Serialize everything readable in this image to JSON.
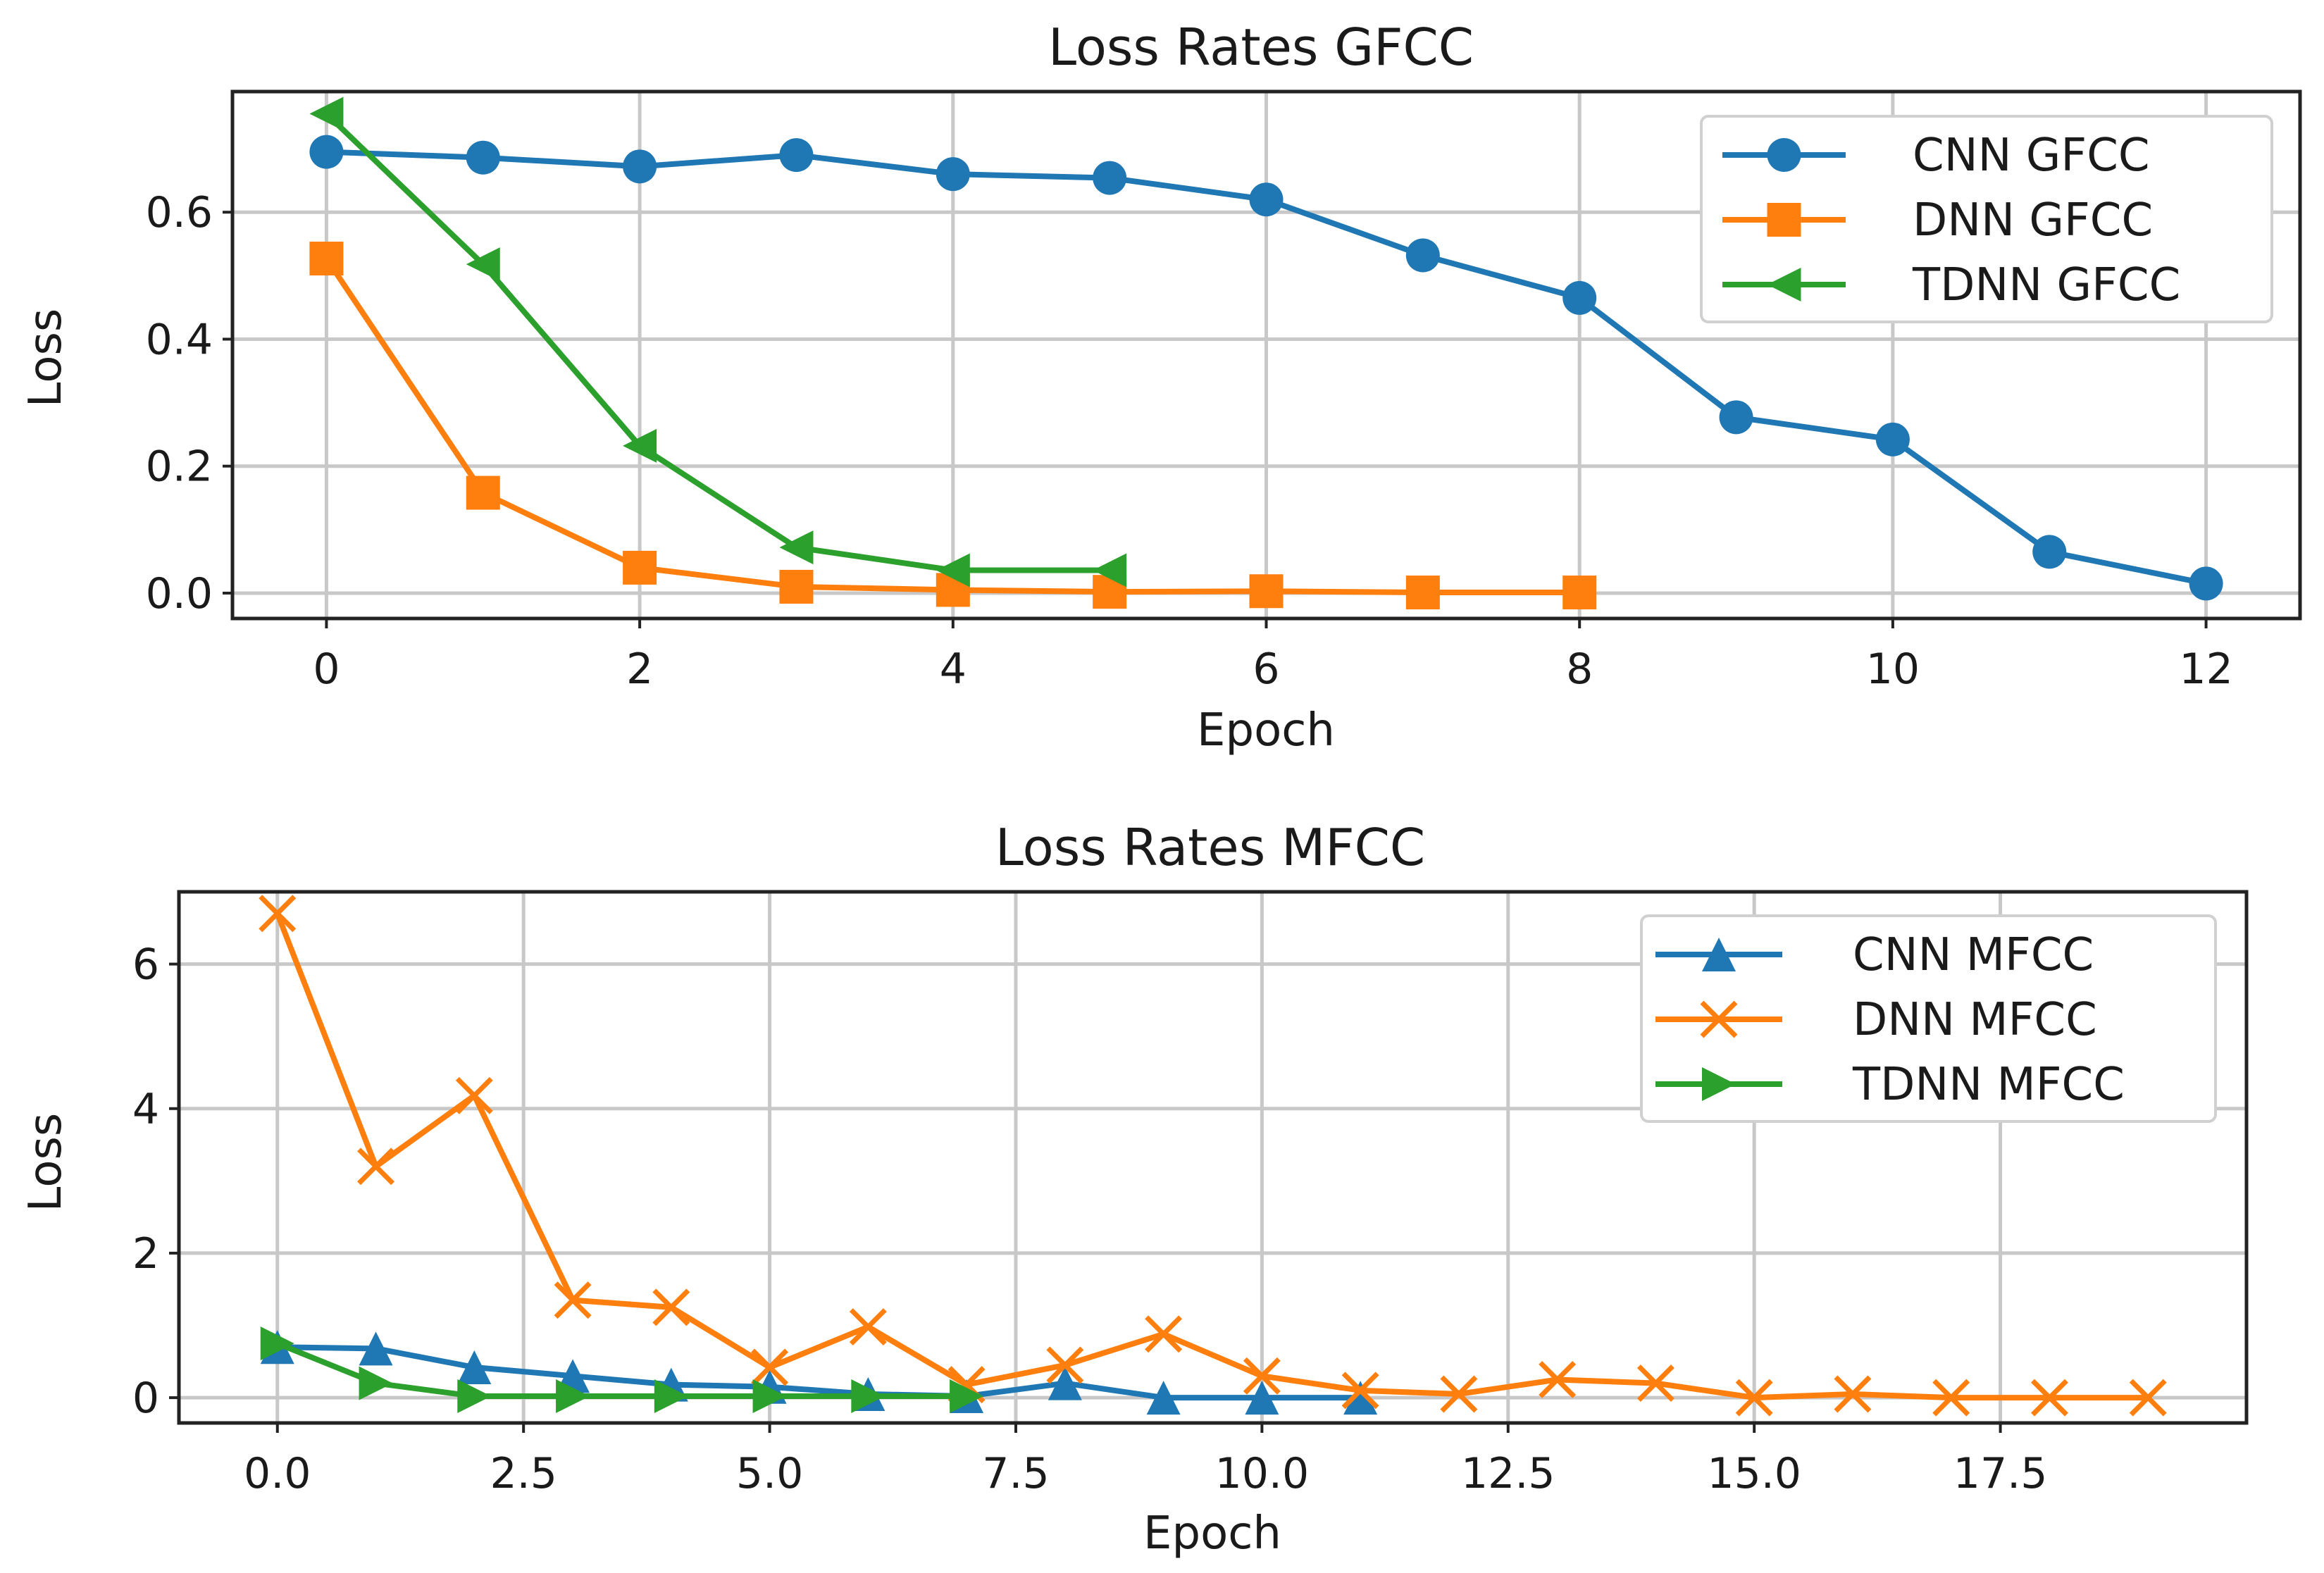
{
  "chart_data": [
    {
      "type": "line",
      "id": "gfcc",
      "title": "Loss Rates GFCC",
      "xlabel": "Epoch",
      "ylabel": "Loss",
      "xlim": [
        -0.6,
        12.6
      ],
      "ylim": [
        -0.04,
        0.79
      ],
      "xticks": [
        0,
        2,
        4,
        6,
        8,
        10,
        12
      ],
      "xtick_labels": [
        "0",
        "2",
        "4",
        "6",
        "8",
        "10",
        "12"
      ],
      "yticks": [
        0.0,
        0.2,
        0.4,
        0.6
      ],
      "ytick_labels": [
        "0.0",
        "0.2",
        "0.4",
        "0.6"
      ],
      "grid": true,
      "legend_position": "top-right",
      "series": [
        {
          "name": "CNN GFCC",
          "color": "#1f77b4",
          "marker": "circle",
          "x": [
            0,
            1,
            2,
            3,
            4,
            5,
            6,
            7,
            8,
            9,
            10,
            11,
            12
          ],
          "values": [
            0.695,
            0.686,
            0.672,
            0.69,
            0.66,
            0.654,
            0.62,
            0.532,
            0.465,
            0.277,
            0.242,
            0.065,
            0.015
          ]
        },
        {
          "name": "DNN GFCC",
          "color": "#ff7f0e",
          "marker": "square",
          "x": [
            0,
            1,
            2,
            3,
            4,
            5,
            6,
            7,
            8
          ],
          "values": [
            0.527,
            0.158,
            0.04,
            0.01,
            0.005,
            0.002,
            0.003,
            0.001,
            0.001
          ]
        },
        {
          "name": "TDNN GFCC",
          "color": "#2ca02c",
          "marker": "triangle-left",
          "x": [
            0,
            1,
            2,
            3,
            4,
            5
          ],
          "values": [
            0.755,
            0.518,
            0.232,
            0.072,
            0.036,
            0.036
          ]
        }
      ]
    },
    {
      "type": "line",
      "id": "mfcc",
      "title": "Loss Rates MFCC",
      "xlabel": "Epoch",
      "ylabel": "Loss",
      "xlim": [
        -1.0,
        20.0
      ],
      "ylim": [
        -0.35,
        7.0
      ],
      "xticks": [
        0.0,
        2.5,
        5.0,
        7.5,
        10.0,
        12.5,
        15.0,
        17.5
      ],
      "xtick_labels": [
        "0.0",
        "2.5",
        "5.0",
        "7.5",
        "10.0",
        "12.5",
        "15.0",
        "17.5"
      ],
      "yticks": [
        0,
        2,
        4,
        6
      ],
      "ytick_labels": [
        "0",
        "2",
        "4",
        "6"
      ],
      "grid": true,
      "legend_position": "top-right",
      "series": [
        {
          "name": "CNN MFCC",
          "color": "#1f77b4",
          "marker": "triangle-up",
          "x": [
            0,
            1,
            2,
            3,
            4,
            5,
            6,
            7,
            8,
            9,
            10,
            11
          ],
          "values": [
            0.7,
            0.68,
            0.42,
            0.3,
            0.18,
            0.15,
            0.05,
            0.02,
            0.2,
            0.0,
            0.0,
            0.0
          ]
        },
        {
          "name": "DNN MFCC",
          "color": "#ff7f0e",
          "marker": "x",
          "x": [
            0,
            1,
            2,
            3,
            4,
            5,
            6,
            7,
            8,
            9,
            10,
            11,
            12,
            13,
            14,
            15,
            16,
            17,
            18,
            19
          ],
          "values": [
            6.7,
            3.2,
            4.18,
            1.35,
            1.25,
            0.42,
            0.98,
            0.18,
            0.45,
            0.88,
            0.3,
            0.1,
            0.05,
            0.25,
            0.2,
            0.0,
            0.05,
            0.0,
            0.0,
            0.0
          ]
        },
        {
          "name": "TDNN MFCC",
          "color": "#2ca02c",
          "marker": "triangle-right",
          "x": [
            0,
            1,
            2,
            3,
            4,
            5,
            6,
            7
          ],
          "values": [
            0.75,
            0.2,
            0.02,
            0.02,
            0.02,
            0.02,
            0.02,
            0.02
          ]
        }
      ]
    }
  ]
}
